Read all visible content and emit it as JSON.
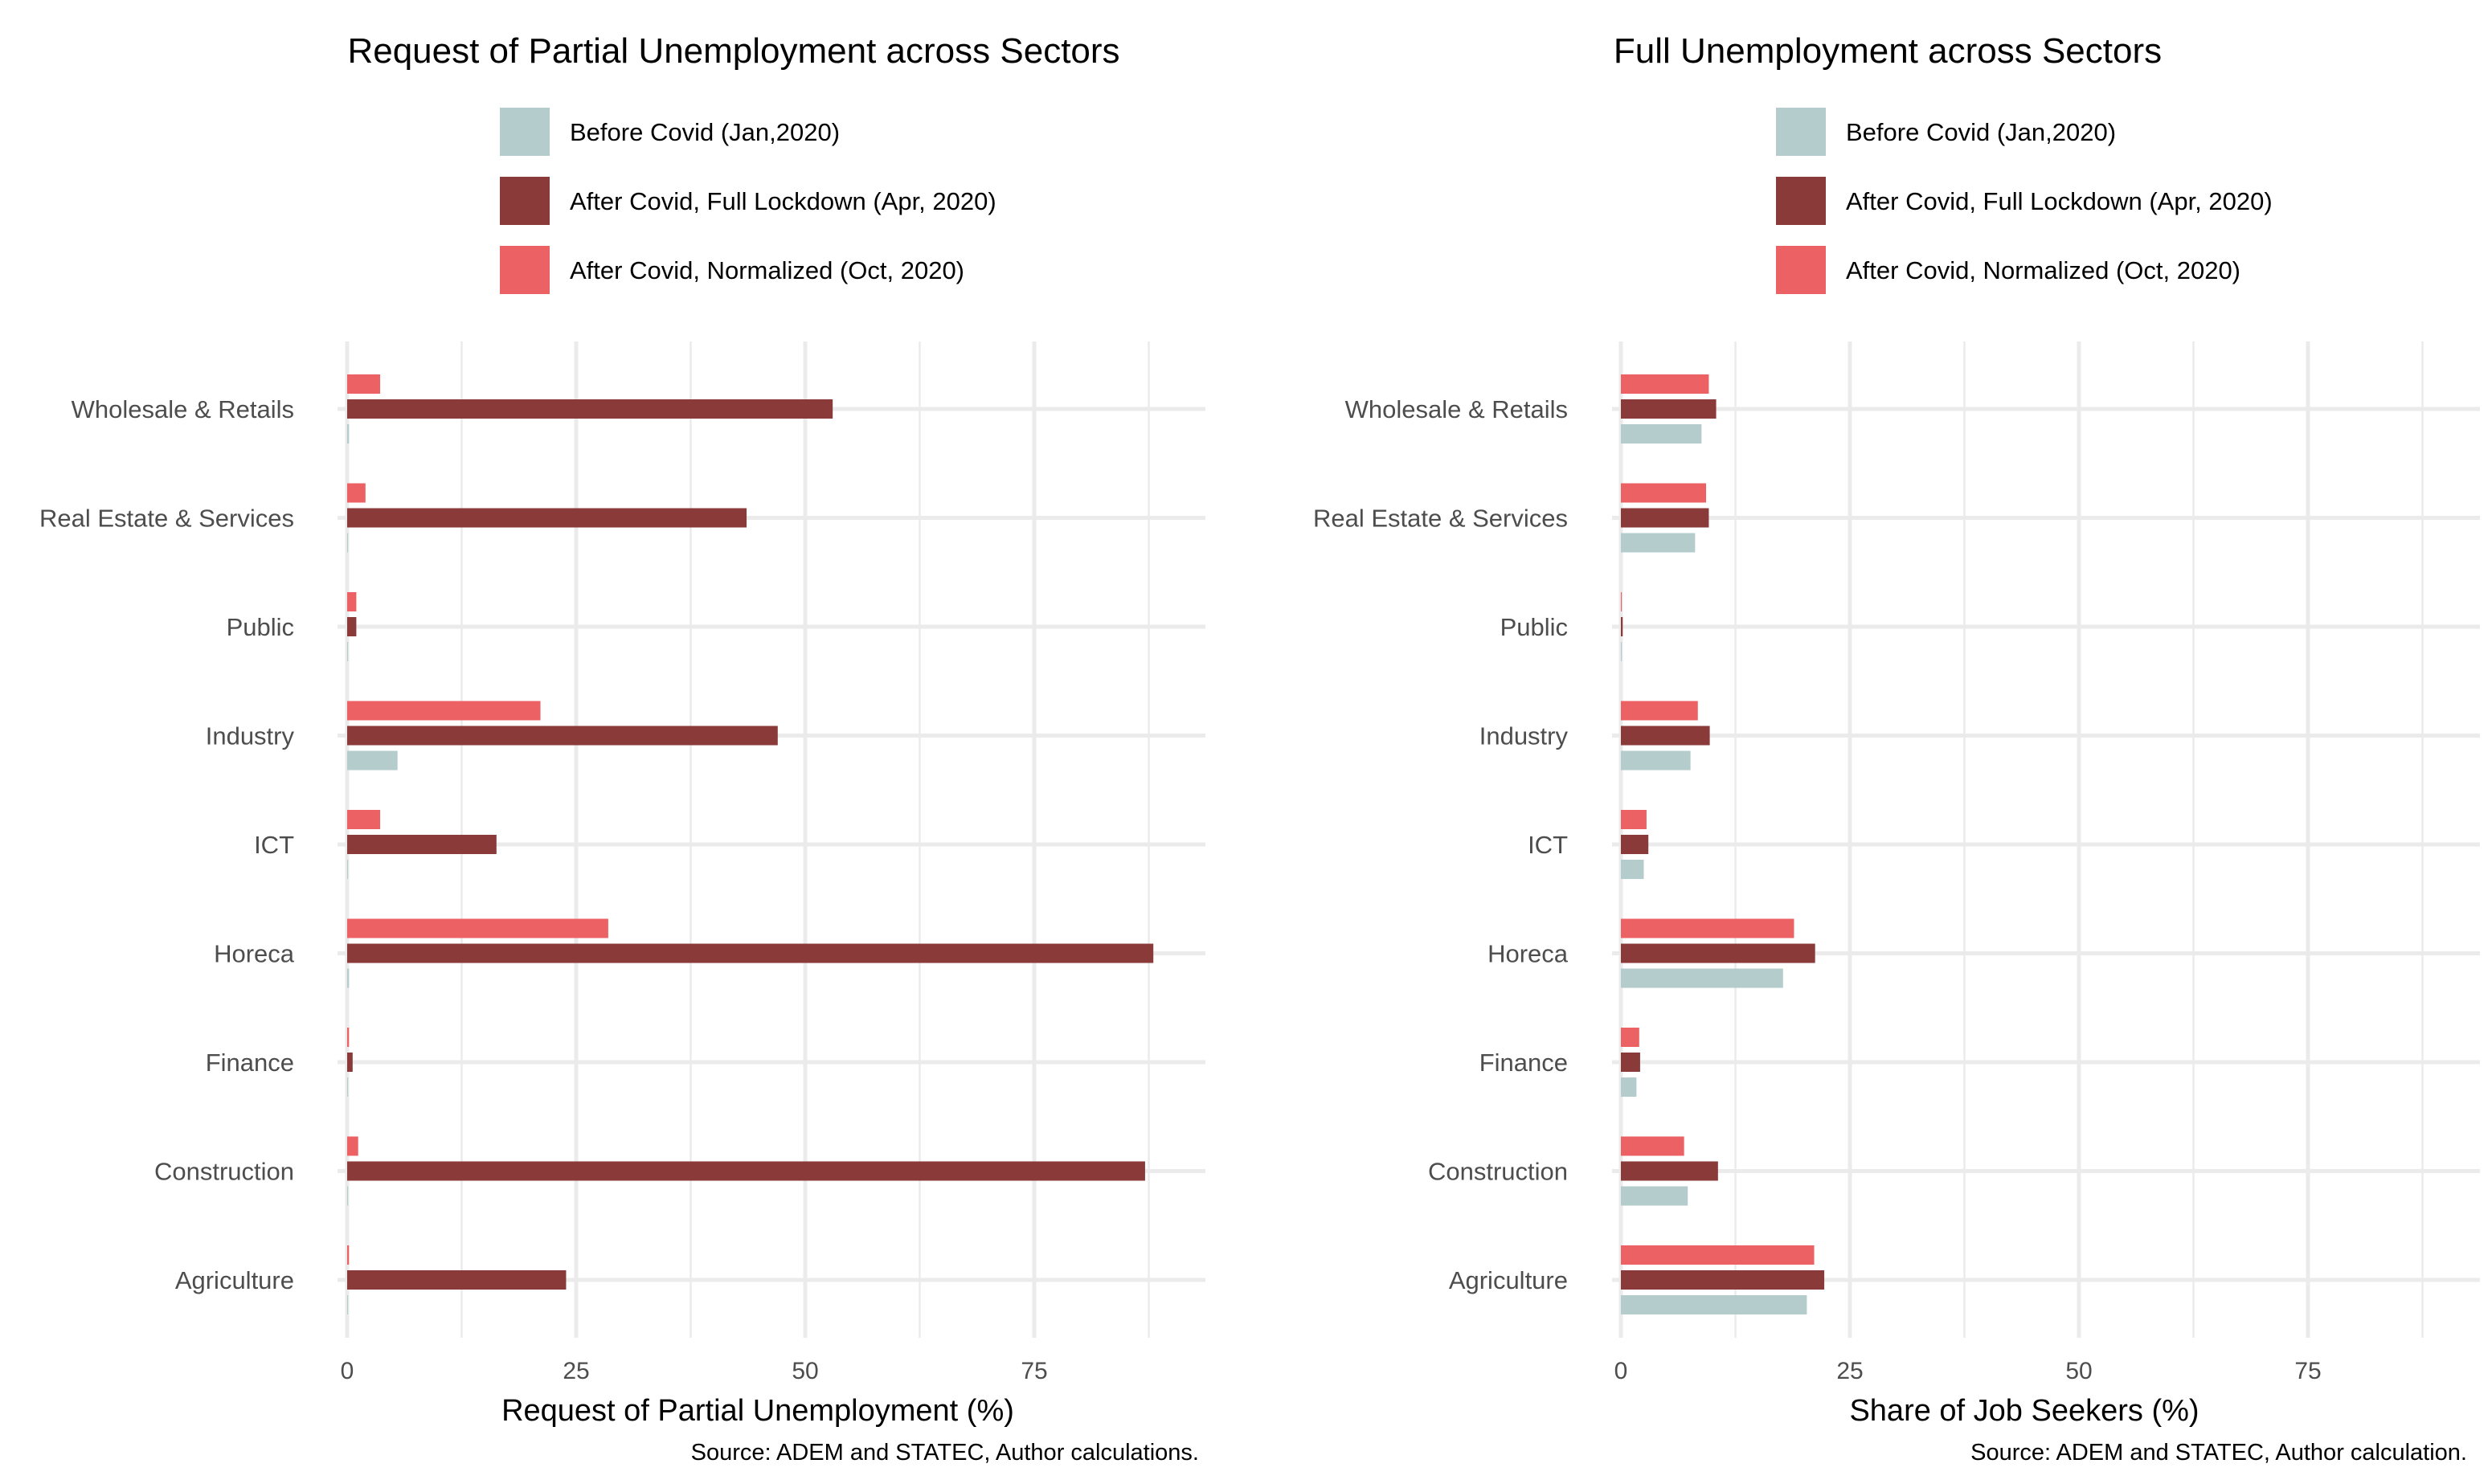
{
  "colors": {
    "before": "#b4cccc",
    "lockdown": "#8b3a3a",
    "normalized": "#ec6264",
    "grid": "#ebebeb"
  },
  "legend": [
    {
      "key": "before",
      "label": "Before Covid (Jan,2020)"
    },
    {
      "key": "lockdown",
      "label": "After Covid, Full Lockdown (Apr, 2020)"
    },
    {
      "key": "normalized",
      "label": "After Covid, Normalized (Oct, 2020)"
    }
  ],
  "chart_data": [
    {
      "type": "bar",
      "orientation": "horizontal",
      "title": "Request of Partial Unemployment across Sectors",
      "xlabel": "Request of Partial Unemployment (%)",
      "source": "Source: ADEM and STATEC, Author calculations.",
      "xlim": [
        0,
        95
      ],
      "xticks": [
        0,
        25,
        50,
        75
      ],
      "categories": [
        "Wholesale & Retails",
        "Real Estate & Services",
        "Public",
        "Industry",
        "ICT",
        "Horeca",
        "Finance",
        "Construction",
        "Agriculture"
      ],
      "series": [
        {
          "key": "before",
          "name": "Before Covid (Jan,2020)",
          "values": [
            0.2,
            0.1,
            0.1,
            5.5,
            0.1,
            0.2,
            0.1,
            0.1,
            0.1
          ]
        },
        {
          "key": "lockdown",
          "name": "After Covid, Full Lockdown (Apr, 2020)",
          "values": [
            53,
            43.6,
            1,
            47,
            16.3,
            88,
            0.6,
            87.1,
            23.9
          ]
        },
        {
          "key": "normalized",
          "name": "After Covid, Normalized (Oct, 2020)",
          "values": [
            3.6,
            2,
            1,
            21.1,
            3.6,
            28.5,
            0.2,
            1.2,
            0.2
          ]
        }
      ]
    },
    {
      "type": "bar",
      "orientation": "horizontal",
      "title": "Full Unemployment across Sectors",
      "xlabel": "Share of Job Seekers (%)",
      "source": "Source: ADEM and STATEC, Author calculation.",
      "xlim": [
        0,
        95
      ],
      "xticks": [
        0,
        25,
        50,
        75
      ],
      "categories": [
        "Wholesale & Retails",
        "Real Estate & Services",
        "Public",
        "Industry",
        "ICT",
        "Horeca",
        "Finance",
        "Construction",
        "Agriculture"
      ],
      "series": [
        {
          "key": "before",
          "name": "Before Covid (Jan,2020)",
          "values": [
            8.8,
            8.1,
            0.1,
            7.6,
            2.5,
            17.7,
            1.7,
            7.3,
            20.3
          ]
        },
        {
          "key": "lockdown",
          "name": "After Covid, Full Lockdown (Apr, 2020)",
          "values": [
            10.4,
            9.6,
            0.2,
            9.7,
            3,
            21.2,
            2.1,
            10.6,
            22.2
          ]
        },
        {
          "key": "normalized",
          "name": "After Covid, Normalized (Oct, 2020)",
          "values": [
            9.6,
            9.3,
            0.1,
            8.4,
            2.8,
            18.9,
            2,
            6.9,
            21.1
          ]
        }
      ]
    }
  ]
}
